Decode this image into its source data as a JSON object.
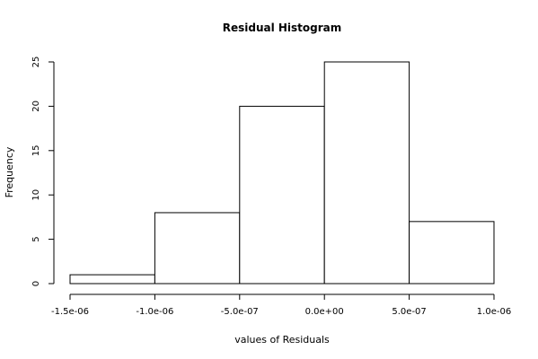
{
  "chart_data": {
    "type": "bar",
    "title": "Residual Histogram",
    "xlabel": "values of Residuals",
    "ylabel": "Frequency",
    "bins": [
      {
        "from": -1.5e-06,
        "to": -1e-06,
        "count": 1
      },
      {
        "from": -1e-06,
        "to": -5e-07,
        "count": 8
      },
      {
        "from": -5e-07,
        "to": 0.0,
        "count": 20
      },
      {
        "from": 0.0,
        "to": 5e-07,
        "count": 25
      },
      {
        "from": 5e-07,
        "to": 1e-06,
        "count": 7
      }
    ],
    "xlim": [
      -1.5e-06,
      1e-06
    ],
    "ylim": [
      0,
      25
    ],
    "x_ticks": [
      -1.5e-06,
      -1e-06,
      -5e-07,
      0.0,
      5e-07,
      1e-06
    ],
    "x_tick_labels": [
      "-1.5e-06",
      "-1.0e-06",
      "-5.0e-07",
      "0.0e+00",
      "5.0e-07",
      "1.0e-06"
    ],
    "y_ticks": [
      0,
      5,
      10,
      15,
      20,
      25
    ],
    "y_tick_labels": [
      "0",
      "5",
      "10",
      "15",
      "20",
      "25"
    ],
    "grid": false,
    "bar_fill": "#ffffff",
    "bar_stroke": "#000000"
  }
}
